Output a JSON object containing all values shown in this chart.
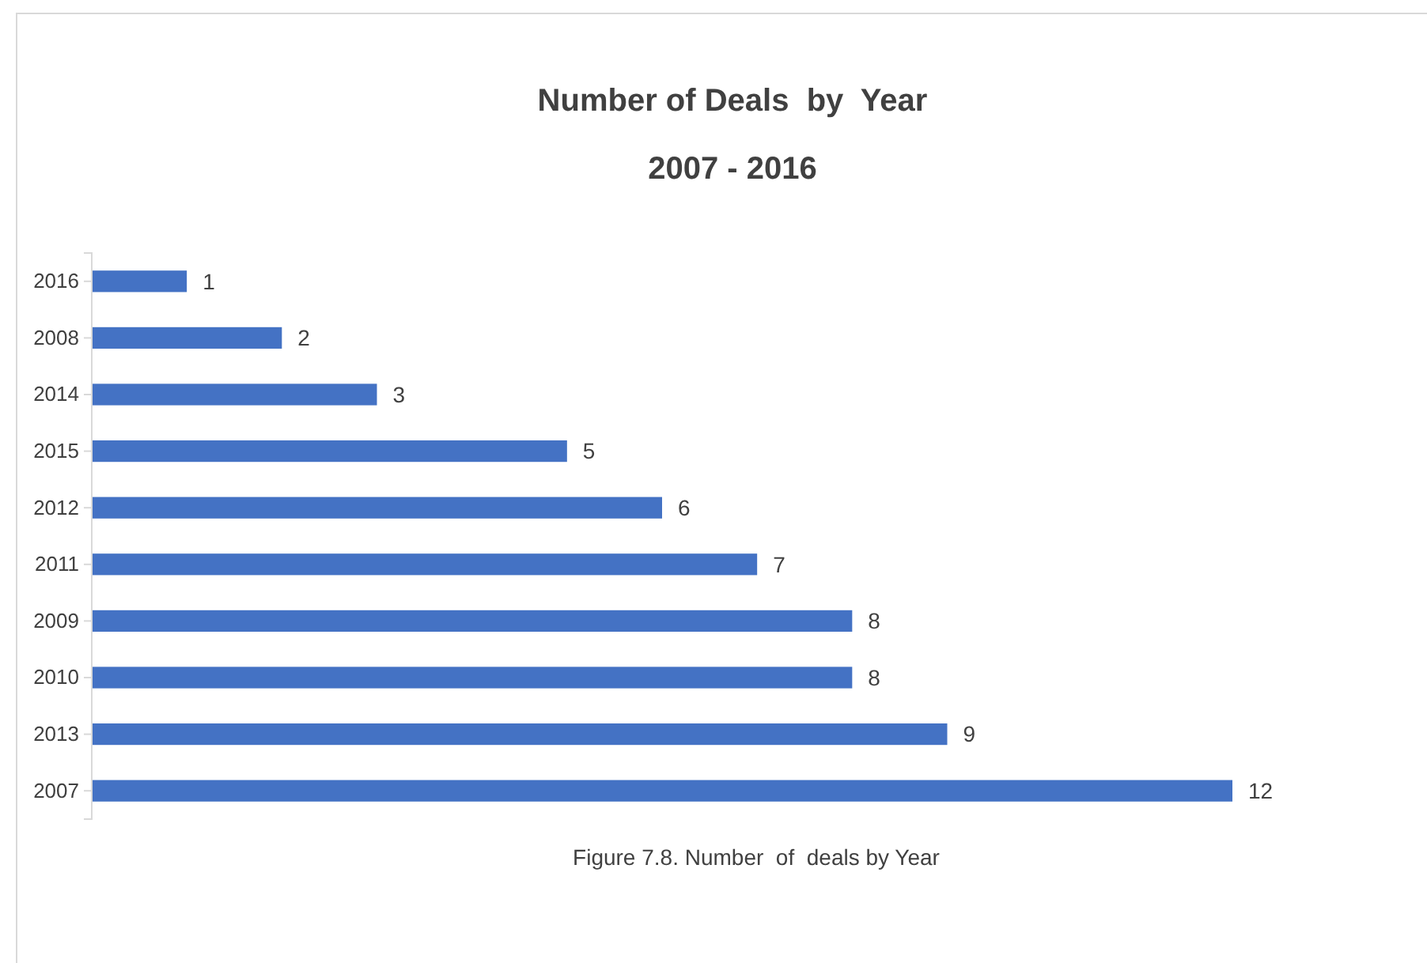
{
  "chart_data": {
    "type": "bar",
    "orientation": "horizontal",
    "title": "Number of Deals  by  Year",
    "subtitle": "2007 - 2016",
    "categories": [
      "2016",
      "2008",
      "2014",
      "2015",
      "2012",
      "2011",
      "2009",
      "2010",
      "2013",
      "2007"
    ],
    "values": [
      1,
      2,
      3,
      5,
      6,
      7,
      8,
      8,
      9,
      12
    ],
    "color": "#4472c4",
    "data_labels": true,
    "annotations": [
      "Figure 7.8. Number  of  deals by Year"
    ]
  }
}
